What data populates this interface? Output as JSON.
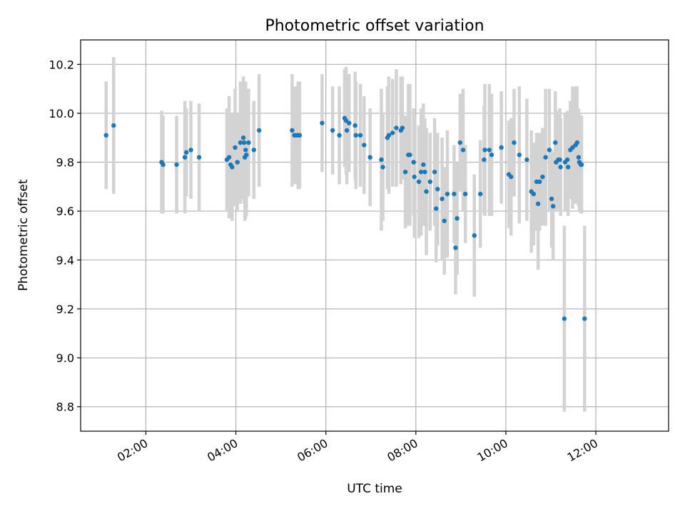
{
  "chart_data": {
    "type": "scatter",
    "title": "Photometric offset variation",
    "xlabel": "UTC time",
    "ylabel": "Photometric offset",
    "xlim": [
      "00:33",
      "13:37"
    ],
    "ylim": [
      8.7,
      10.3
    ],
    "grid": true,
    "x_ticks": [
      "02:00",
      "04:00",
      "06:00",
      "08:00",
      "10:00",
      "12:00"
    ],
    "y_ticks": [
      "8.8",
      "9.0",
      "9.2",
      "9.4",
      "9.6",
      "9.8",
      "10.0",
      "10.2"
    ],
    "point_color": "#1f77b4",
    "errorbar_color": "#d3d3d3",
    "series": [
      {
        "x": [
          "01:07",
          "01:17",
          "02:21",
          "02:23",
          "02:41",
          "02:52",
          "02:54",
          "03:00",
          "03:11",
          "03:48",
          "03:51",
          "03:53",
          "03:55",
          "03:59",
          "04:02",
          "04:06",
          "04:10",
          "04:11",
          "04:12",
          "04:13",
          "04:14",
          "04:17",
          "04:24",
          "04:31",
          "05:15",
          "05:18",
          "05:21",
          "05:23",
          "05:25",
          "05:55",
          "06:09",
          "06:18",
          "06:25",
          "06:27",
          "06:28",
          "06:31",
          "06:39",
          "06:40",
          "06:46",
          "06:51",
          "06:59",
          "07:14",
          "07:16",
          "07:22",
          "07:24",
          "07:29",
          "07:34",
          "07:40",
          "07:42",
          "07:46",
          "07:50",
          "07:52",
          "07:57",
          "07:58",
          "08:04",
          "08:07",
          "08:10",
          "08:12",
          "08:14",
          "08:19",
          "08:25",
          "08:27",
          "08:29",
          "08:35",
          "08:38",
          "08:42",
          "08:51",
          "08:53",
          "08:55",
          "08:59",
          "09:03",
          "09:06",
          "09:18",
          "09:26",
          "09:31",
          "09:32",
          "09:38",
          "09:41",
          "09:54",
          "10:04",
          "10:07",
          "10:11",
          "10:18",
          "10:28",
          "10:34",
          "10:37",
          "10:41",
          "10:43",
          "10:45",
          "10:49",
          "10:53",
          "10:58",
          "11:01",
          "11:03",
          "11:06",
          "11:07",
          "11:10",
          "11:12",
          "11:13",
          "11:18",
          "11:19",
          "11:22",
          "11:23",
          "11:26",
          "11:29",
          "11:33",
          "11:35",
          "11:37",
          "11:38",
          "11:40",
          "11:41",
          "11:45"
        ],
        "y": [
          9.91,
          9.95,
          9.8,
          9.79,
          9.79,
          9.82,
          9.84,
          9.85,
          9.82,
          9.81,
          9.82,
          9.79,
          9.78,
          9.86,
          9.8,
          9.88,
          9.9,
          9.88,
          9.82,
          9.85,
          9.83,
          9.88,
          9.85,
          9.93,
          9.93,
          9.91,
          9.91,
          9.91,
          9.91,
          9.96,
          9.93,
          9.91,
          9.98,
          9.97,
          9.93,
          9.96,
          9.95,
          9.91,
          9.91,
          9.87,
          9.82,
          9.81,
          9.78,
          9.9,
          9.91,
          9.92,
          9.94,
          9.93,
          9.94,
          9.76,
          9.83,
          9.83,
          9.8,
          9.74,
          9.72,
          9.76,
          9.79,
          9.76,
          9.68,
          9.72,
          9.76,
          9.61,
          9.69,
          9.65,
          9.56,
          9.67,
          9.67,
          9.45,
          9.57,
          9.88,
          9.85,
          9.67,
          9.5,
          9.67,
          9.81,
          9.85,
          9.85,
          9.83,
          9.86,
          9.75,
          9.74,
          9.88,
          9.83,
          9.81,
          9.68,
          9.67,
          9.72,
          9.63,
          9.72,
          9.74,
          9.82,
          9.85,
          9.65,
          9.62,
          9.88,
          9.8,
          9.81,
          9.81,
          9.78,
          9.16,
          9.8,
          9.81,
          9.78,
          9.85,
          9.86,
          9.87,
          9.88,
          9.82,
          9.8,
          9.79,
          9.79,
          9.16
        ],
        "yerr": [
          0.22,
          0.28,
          0.21,
          0.2,
          0.2,
          0.23,
          0.18,
          0.2,
          0.22,
          0.21,
          0.25,
          0.2,
          0.22,
          0.24,
          0.2,
          0.25,
          0.25,
          0.25,
          0.26,
          0.28,
          0.25,
          0.22,
          0.2,
          0.23,
          0.23,
          0.2,
          0.2,
          0.22,
          0.22,
          0.2,
          0.18,
          0.2,
          0.2,
          0.22,
          0.22,
          0.2,
          0.22,
          0.22,
          0.21,
          0.2,
          0.2,
          0.29,
          0.22,
          0.21,
          0.24,
          0.22,
          0.24,
          0.22,
          0.21,
          0.23,
          0.29,
          0.29,
          0.22,
          0.25,
          0.23,
          0.26,
          0.25,
          0.22,
          0.26,
          0.2,
          0.22,
          0.22,
          0.23,
          0.25,
          0.22,
          0.26,
          0.2,
          0.19,
          0.23,
          0.2,
          0.25,
          0.2,
          0.25,
          0.22,
          0.22,
          0.27,
          0.27,
          0.25,
          0.23,
          0.22,
          0.24,
          0.22,
          0.28,
          0.25,
          0.25,
          0.21,
          0.2,
          0.27,
          0.2,
          0.2,
          0.28,
          0.25,
          0.2,
          0.22,
          0.21,
          0.2,
          0.2,
          0.21,
          0.2,
          0.38,
          0.2,
          0.2,
          0.2,
          0.2,
          0.25,
          0.24,
          0.23,
          0.2,
          0.2,
          0.2,
          0.2,
          0.38
        ]
      }
    ]
  }
}
